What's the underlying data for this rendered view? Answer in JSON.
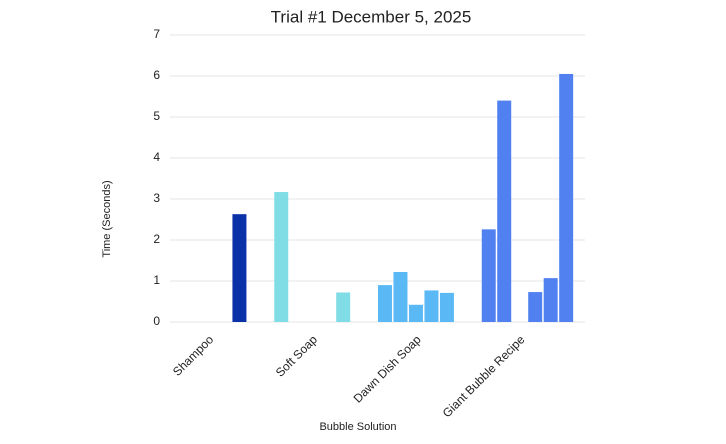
{
  "chart_data": {
    "type": "bar",
    "title": "Trial #1 December 5, 2025",
    "x_label": "Bubble Solution",
    "y_label": "Time (Seconds)",
    "categories": [
      "Shampoo",
      "Soft Soap",
      "Dawn Dish Soap",
      "Giant Bubble Recipe"
    ],
    "colors": [
      "#0a31a8",
      "#80dde6",
      "#5ab9f5",
      "#5181f1"
    ],
    "series": [
      {
        "values": [
          null,
          3.17,
          0.9,
          2.26
        ]
      },
      {
        "values": [
          null,
          null,
          1.22,
          5.4
        ]
      },
      {
        "values": [
          null,
          null,
          0.42,
          null
        ]
      },
      {
        "values": [
          null,
          null,
          0.77,
          0.73
        ]
      },
      {
        "values": [
          2.63,
          0.72,
          0.71,
          1.07
        ]
      },
      {
        "values": [
          null,
          null,
          null,
          6.05
        ]
      }
    ],
    "ylim": [
      0,
      7
    ],
    "yticks": [
      0,
      1,
      2,
      3,
      4,
      5,
      6,
      7
    ],
    "grid": true
  }
}
